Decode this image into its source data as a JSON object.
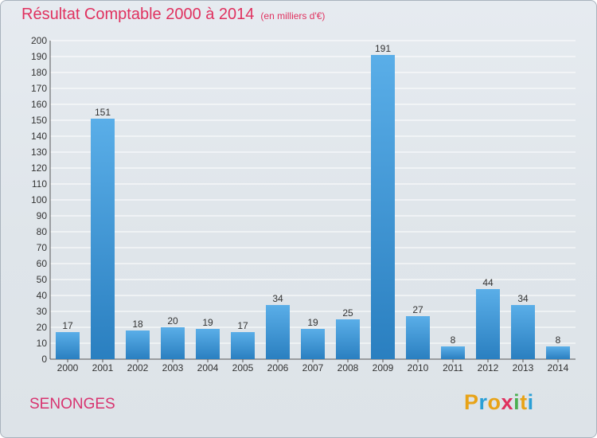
{
  "title": "Résultat Comptable 2000 à 2014",
  "subtitle": "(en milliers d'€)",
  "place": "SENONGES",
  "logo": {
    "letters": [
      {
        "char": "P",
        "color": "#e8a317"
      },
      {
        "char": "r",
        "color": "#2a9fd6"
      },
      {
        "char": "o",
        "color": "#e8a317"
      },
      {
        "char": "x",
        "color": "#e0315f"
      },
      {
        "char": "i",
        "color": "#4caf50"
      },
      {
        "char": "t",
        "color": "#e8a317"
      },
      {
        "char": "i",
        "color": "#2a9fd6"
      }
    ]
  },
  "colors": {
    "bar_top": "#5aaee8",
    "bar_bottom": "#2a7fc0",
    "grid": "#ffffff",
    "axis_text": "#333333",
    "title": "#e0315f"
  },
  "chart_data": {
    "type": "bar",
    "title": "Résultat Comptable 2000 à 2014",
    "subtitle": "(en milliers d'€)",
    "xlabel": "",
    "ylabel": "",
    "categories": [
      "2000",
      "2001",
      "2002",
      "2003",
      "2004",
      "2005",
      "2006",
      "2007",
      "2008",
      "2009",
      "2010",
      "2011",
      "2012",
      "2013",
      "2014"
    ],
    "values": [
      17,
      151,
      18,
      20,
      19,
      17,
      34,
      19,
      25,
      191,
      27,
      8,
      44,
      34,
      8
    ],
    "ylim": [
      0,
      200
    ],
    "ytick_step": 10,
    "grid": true,
    "data_labels": true
  }
}
